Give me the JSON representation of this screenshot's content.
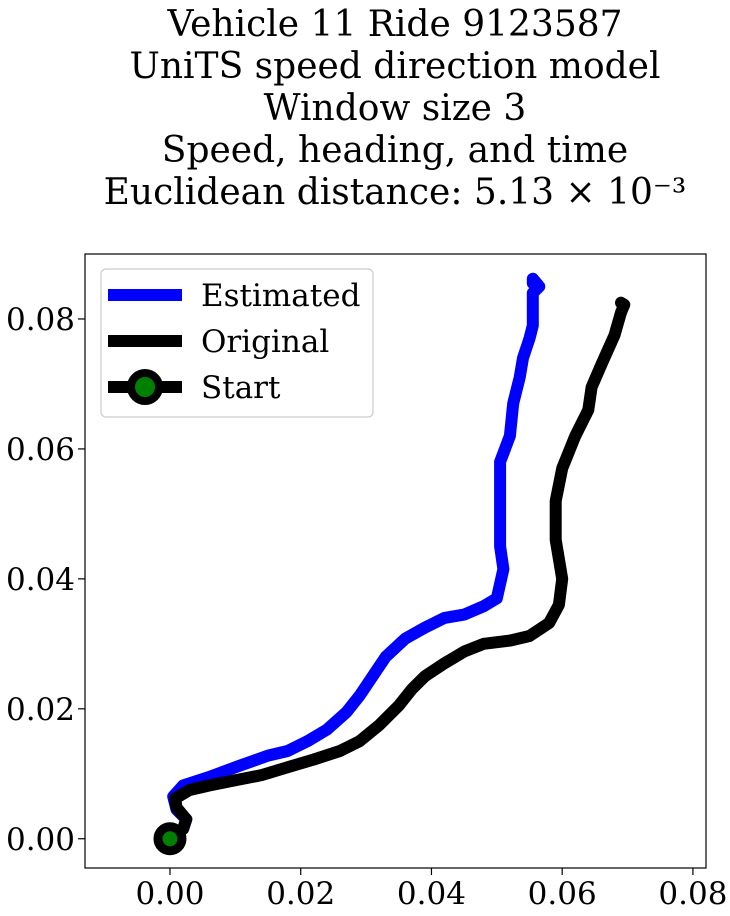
{
  "chart_data": {
    "type": "line",
    "title_lines": [
      "Vehicle 11 Ride 9123587",
      "UniTS speed direction model",
      "Window size 3",
      "Speed, heading, and time",
      "Euclidean distance: 5.13 × 10⁻³"
    ],
    "xlabel": "",
    "ylabel": "",
    "xlim": [
      -0.013,
      0.082
    ],
    "ylim": [
      -0.0045,
      0.09
    ],
    "xticks": [
      "0.00",
      "0.02",
      "0.04",
      "0.06",
      "0.08"
    ],
    "yticks": [
      "0.00",
      "0.02",
      "0.04",
      "0.06",
      "0.08"
    ],
    "grid": false,
    "legend_position": "top-left",
    "legend": [
      "Estimated",
      "Original",
      "Start"
    ],
    "series": [
      {
        "name": "Estimated",
        "color": "#0000ff",
        "points": [
          [
            0.0,
            0.0
          ],
          [
            0.002,
            0.0015
          ],
          [
            0.0025,
            0.003
          ],
          [
            0.001,
            0.0045
          ],
          [
            0.0005,
            0.0065
          ],
          [
            0.002,
            0.0082
          ],
          [
            0.006,
            0.0095
          ],
          [
            0.01,
            0.011
          ],
          [
            0.015,
            0.0128
          ],
          [
            0.018,
            0.0135
          ],
          [
            0.021,
            0.015
          ],
          [
            0.024,
            0.0168
          ],
          [
            0.027,
            0.0195
          ],
          [
            0.029,
            0.022
          ],
          [
            0.031,
            0.025
          ],
          [
            0.033,
            0.028
          ],
          [
            0.036,
            0.0308
          ],
          [
            0.039,
            0.0325
          ],
          [
            0.042,
            0.034
          ],
          [
            0.045,
            0.0345
          ],
          [
            0.048,
            0.0358
          ],
          [
            0.05,
            0.037
          ],
          [
            0.051,
            0.0415
          ],
          [
            0.0505,
            0.045
          ],
          [
            0.0505,
            0.05
          ],
          [
            0.0505,
            0.058
          ],
          [
            0.052,
            0.062
          ],
          [
            0.0525,
            0.067
          ],
          [
            0.0535,
            0.071
          ],
          [
            0.054,
            0.074
          ],
          [
            0.055,
            0.077
          ],
          [
            0.0555,
            0.079
          ],
          [
            0.0555,
            0.0825
          ],
          [
            0.0555,
            0.084
          ],
          [
            0.0565,
            0.085
          ],
          [
            0.0555,
            0.0862
          ],
          [
            0.0555,
            0.0855
          ]
        ]
      },
      {
        "name": "Original",
        "color": "#000000",
        "points": [
          [
            0.0,
            0.0
          ],
          [
            0.002,
            0.0015
          ],
          [
            0.0025,
            0.003
          ],
          [
            0.001,
            0.0048
          ],
          [
            0.0008,
            0.0062
          ],
          [
            0.003,
            0.0075
          ],
          [
            0.006,
            0.0082
          ],
          [
            0.01,
            0.009
          ],
          [
            0.014,
            0.0098
          ],
          [
            0.018,
            0.011
          ],
          [
            0.022,
            0.0122
          ],
          [
            0.026,
            0.0135
          ],
          [
            0.029,
            0.015
          ],
          [
            0.032,
            0.0175
          ],
          [
            0.035,
            0.0205
          ],
          [
            0.037,
            0.023
          ],
          [
            0.039,
            0.025
          ],
          [
            0.042,
            0.027
          ],
          [
            0.045,
            0.0288
          ],
          [
            0.048,
            0.03
          ],
          [
            0.052,
            0.0305
          ],
          [
            0.055,
            0.0312
          ],
          [
            0.058,
            0.0332
          ],
          [
            0.0595,
            0.036
          ],
          [
            0.06,
            0.04
          ],
          [
            0.059,
            0.046
          ],
          [
            0.059,
            0.052
          ],
          [
            0.06,
            0.057
          ],
          [
            0.062,
            0.062
          ],
          [
            0.064,
            0.066
          ],
          [
            0.0645,
            0.0695
          ],
          [
            0.066,
            0.073
          ],
          [
            0.068,
            0.0775
          ],
          [
            0.069,
            0.081
          ],
          [
            0.0695,
            0.0822
          ],
          [
            0.069,
            0.0825
          ]
        ]
      }
    ],
    "start_point": {
      "name": "Start",
      "x": 0.0,
      "y": 0.0,
      "marker_edge": "#000000",
      "marker_face": "#008000"
    }
  }
}
